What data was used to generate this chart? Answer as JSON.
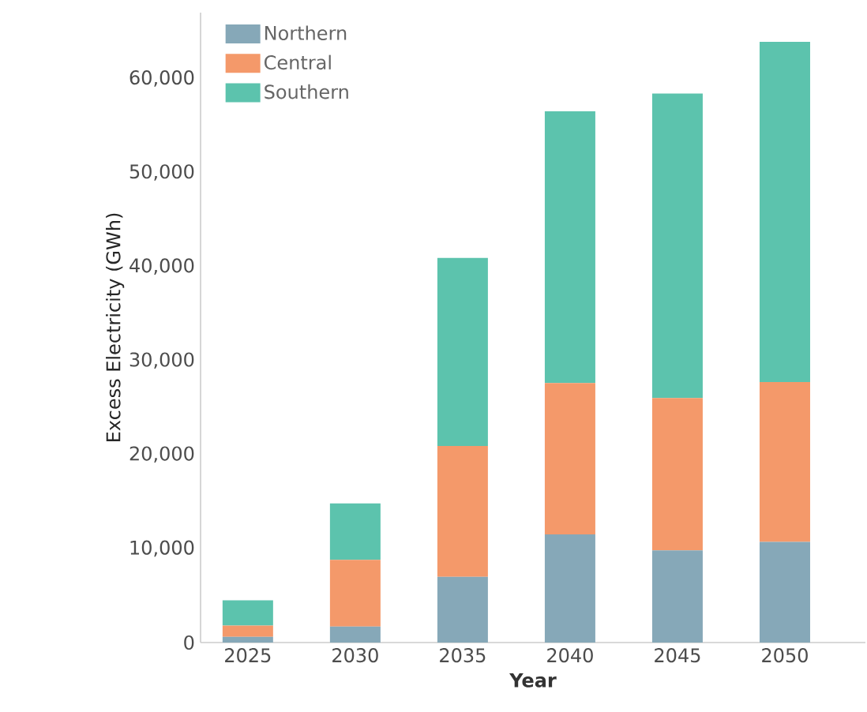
{
  "chart_data": {
    "type": "bar",
    "stacked": true,
    "xlabel": "Year",
    "ylabel": "Excess Electricity (GWh)",
    "categories": [
      "2025",
      "2030",
      "2035",
      "2040",
      "2045",
      "2050"
    ],
    "series": [
      {
        "name": "Northern",
        "color": "#86a8b8",
        "values": [
          600,
          1700,
          7000,
          11500,
          9800,
          10700
        ]
      },
      {
        "name": "Central",
        "color": "#f4996a",
        "values": [
          1200,
          7100,
          13900,
          16100,
          16200,
          17000
        ]
      },
      {
        "name": "Southern",
        "color": "#5cc3ad",
        "values": [
          2700,
          6000,
          20000,
          28900,
          32400,
          36200
        ]
      }
    ],
    "ylim": [
      0,
      67000
    ],
    "yticks": [
      {
        "value": 0,
        "label": "0"
      },
      {
        "value": 10000,
        "label": "10,000"
      },
      {
        "value": 20000,
        "label": "20,000"
      },
      {
        "value": 30000,
        "label": "30,000"
      },
      {
        "value": 40000,
        "label": "40,000"
      },
      {
        "value": 50000,
        "label": "50,000"
      },
      {
        "value": 60000,
        "label": "60,000"
      }
    ],
    "grid": false,
    "legend": "top left"
  }
}
